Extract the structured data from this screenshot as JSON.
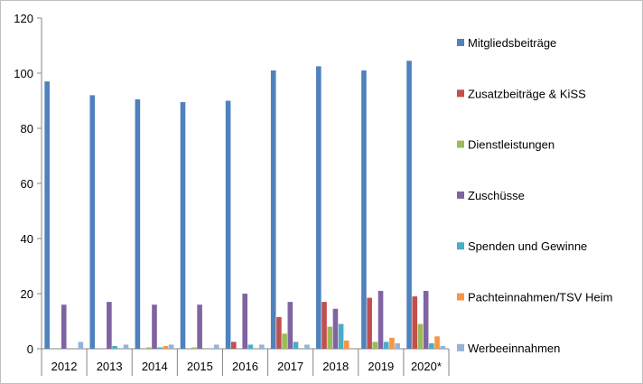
{
  "chart_data": {
    "type": "bar",
    "categories": [
      "2012",
      "2013",
      "2014",
      "2015",
      "2016",
      "2017",
      "2018",
      "2019",
      "2020*"
    ],
    "ylim": [
      0,
      120
    ],
    "yticks": [
      0,
      20,
      40,
      60,
      80,
      100,
      120
    ],
    "grid": false,
    "legend_position": "right",
    "series": [
      {
        "name": "Mitgliedsbeiträge",
        "color": "#4f81bd",
        "values": [
          97,
          92,
          90.5,
          89.5,
          90,
          101,
          102.5,
          101,
          104.5
        ]
      },
      {
        "name": "Zusatzbeiträge & KiSS",
        "color": "#c0504d",
        "values": [
          0,
          0,
          0,
          0,
          2.5,
          11.5,
          17,
          18.5,
          19
        ]
      },
      {
        "name": "Dienstleistungen",
        "color": "#9bbb59",
        "values": [
          0,
          0,
          0.5,
          0.5,
          0,
          5.5,
          8,
          2.5,
          9
        ]
      },
      {
        "name": "Zuschüsse",
        "color": "#8064a2",
        "values": [
          16,
          17,
          16,
          16,
          20,
          17,
          14.5,
          21,
          21
        ]
      },
      {
        "name": "Spenden und Gewinne",
        "color": "#4bacc6",
        "values": [
          0,
          1,
          0.5,
          0,
          1.5,
          2.5,
          9,
          2.5,
          2
        ]
      },
      {
        "name": "Pachteinnahmen/TSV Heim",
        "color": "#f79646",
        "values": [
          0,
          0,
          1,
          0,
          0,
          0,
          3,
          4,
          4.5
        ]
      },
      {
        "name": "Werbeeinnahmen",
        "color": "#95b3d7",
        "values": [
          2.5,
          1.5,
          1.5,
          1.5,
          1.5,
          1.5,
          0,
          2,
          1
        ]
      }
    ]
  }
}
